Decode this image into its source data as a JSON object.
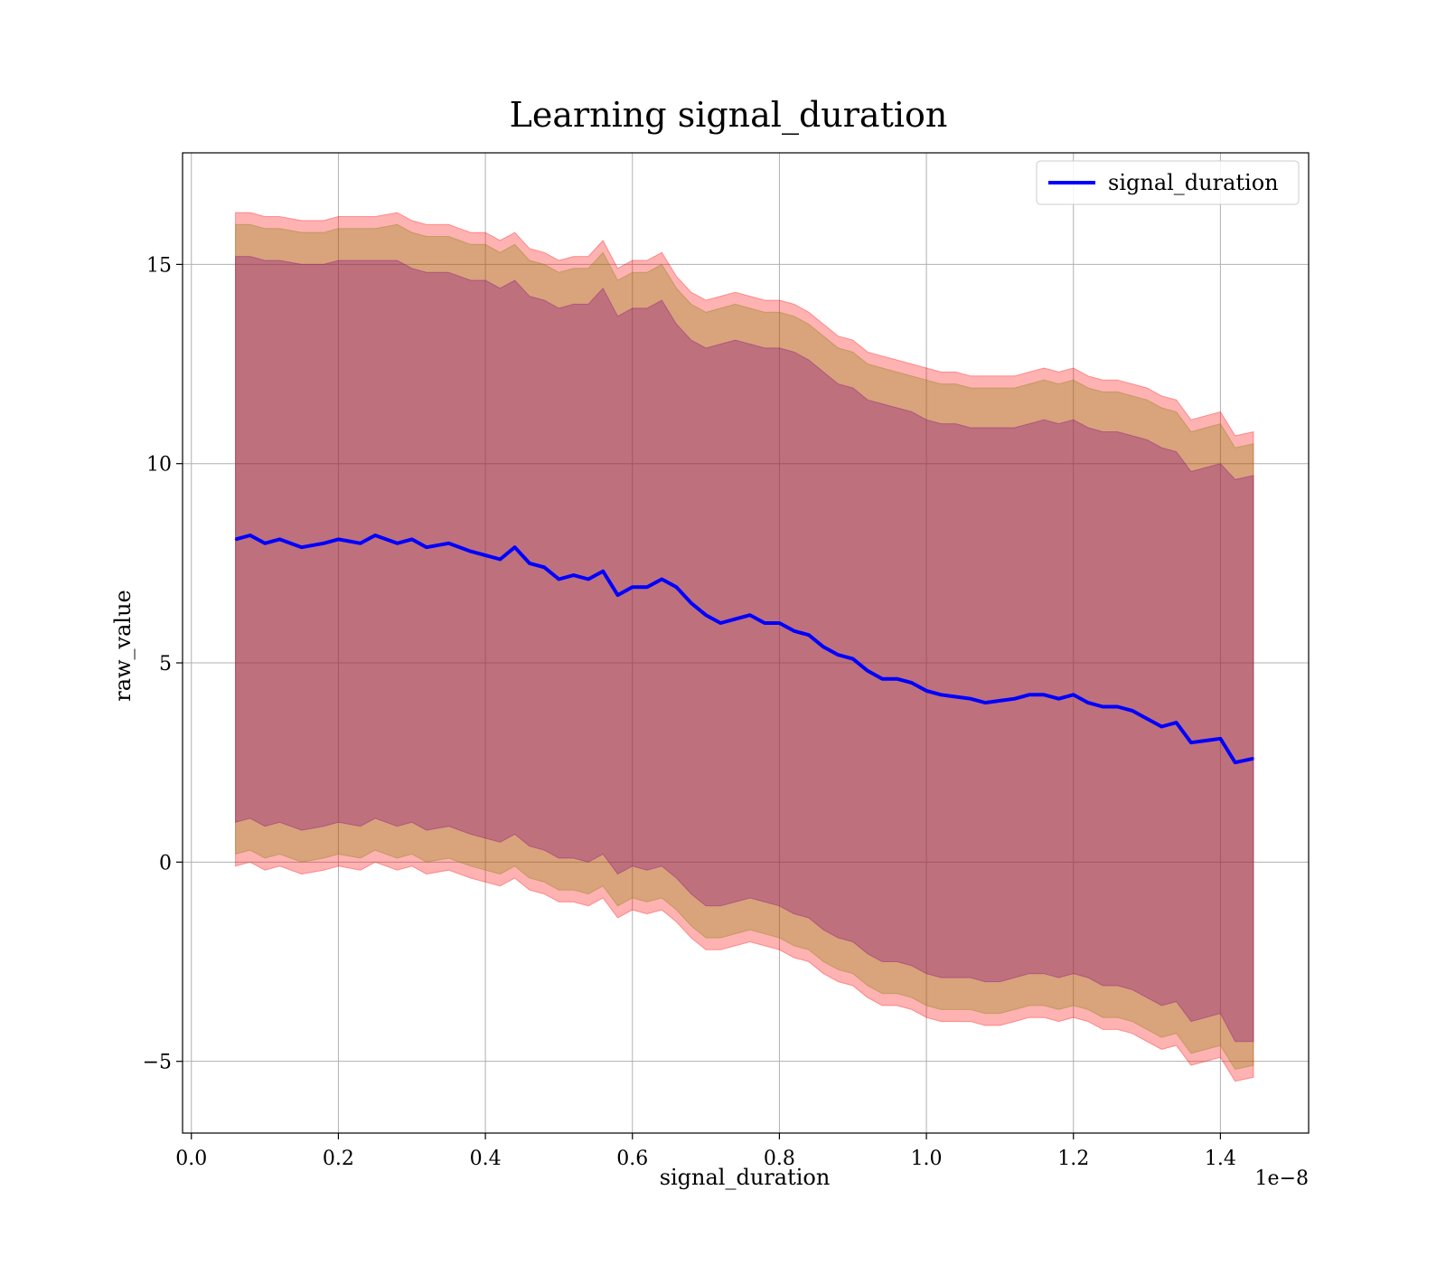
{
  "chart_data": {
    "type": "line",
    "title": "Learning signal_duration",
    "xlabel": "signal_duration",
    "ylabel": "raw_value",
    "x_offset_label": "1e−8",
    "xlim": [
      -0.012,
      1.52
    ],
    "ylim": [
      -6.8,
      17.8
    ],
    "x_ticks": [
      0.0,
      0.2,
      0.4,
      0.6,
      0.8,
      1.0,
      1.2,
      1.4
    ],
    "x_tick_labels": [
      "0.0",
      "0.2",
      "0.4",
      "0.6",
      "0.8",
      "1.0",
      "1.2",
      "1.4"
    ],
    "y_ticks": [
      -5,
      0,
      5,
      10,
      15
    ],
    "y_tick_labels": [
      "−5",
      "0",
      "5",
      "10",
      "15"
    ],
    "grid": true,
    "legend_position": "top-right",
    "series": [
      {
        "name": "signal_duration",
        "color": "#0000ff",
        "x": [
          0.06,
          0.08,
          0.1,
          0.12,
          0.15,
          0.18,
          0.2,
          0.23,
          0.25,
          0.28,
          0.3,
          0.32,
          0.35,
          0.38,
          0.4,
          0.42,
          0.44,
          0.46,
          0.48,
          0.5,
          0.52,
          0.54,
          0.56,
          0.58,
          0.6,
          0.62,
          0.64,
          0.66,
          0.68,
          0.7,
          0.72,
          0.74,
          0.76,
          0.78,
          0.8,
          0.82,
          0.84,
          0.86,
          0.88,
          0.9,
          0.92,
          0.94,
          0.96,
          0.98,
          1.0,
          1.02,
          1.04,
          1.06,
          1.08,
          1.1,
          1.12,
          1.14,
          1.16,
          1.18,
          1.2,
          1.22,
          1.24,
          1.26,
          1.28,
          1.3,
          1.32,
          1.34,
          1.36,
          1.38,
          1.4,
          1.42,
          1.445
        ],
        "values": [
          8.1,
          8.2,
          8.0,
          8.1,
          7.9,
          8.0,
          8.1,
          8.0,
          8.2,
          8.0,
          8.1,
          7.9,
          8.0,
          7.8,
          7.7,
          7.6,
          7.9,
          7.5,
          7.4,
          7.1,
          7.2,
          7.1,
          7.3,
          6.7,
          6.9,
          6.9,
          7.1,
          6.9,
          6.5,
          6.2,
          6.0,
          6.1,
          6.2,
          6.0,
          6.0,
          5.8,
          5.7,
          5.4,
          5.2,
          5.1,
          4.8,
          4.6,
          4.6,
          4.5,
          4.3,
          4.2,
          4.15,
          4.1,
          4.0,
          4.05,
          4.1,
          4.2,
          4.2,
          4.1,
          4.2,
          4.0,
          3.9,
          3.9,
          3.8,
          3.6,
          3.4,
          3.5,
          3.0,
          3.05,
          3.1,
          2.5,
          2.6
        ],
        "bands": [
          {
            "color": "#ff0000",
            "opacity": 0.3,
            "upper": [
              16.3,
              16.3,
              16.2,
              16.2,
              16.1,
              16.1,
              16.2,
              16.2,
              16.2,
              16.3,
              16.1,
              16.0,
              16.0,
              15.8,
              15.8,
              15.6,
              15.8,
              15.4,
              15.3,
              15.1,
              15.2,
              15.2,
              15.6,
              14.9,
              15.1,
              15.1,
              15.3,
              14.7,
              14.3,
              14.1,
              14.2,
              14.3,
              14.2,
              14.1,
              14.1,
              14.0,
              13.8,
              13.5,
              13.2,
              13.1,
              12.8,
              12.7,
              12.6,
              12.5,
              12.4,
              12.3,
              12.3,
              12.2,
              12.2,
              12.2,
              12.2,
              12.3,
              12.4,
              12.3,
              12.4,
              12.2,
              12.1,
              12.1,
              12.0,
              11.9,
              11.7,
              11.6,
              11.1,
              11.2,
              11.3,
              10.7,
              10.8
            ],
            "lower": [
              -0.1,
              0.0,
              -0.2,
              -0.1,
              -0.3,
              -0.2,
              -0.1,
              -0.2,
              0.0,
              -0.2,
              -0.1,
              -0.3,
              -0.2,
              -0.4,
              -0.5,
              -0.6,
              -0.4,
              -0.7,
              -0.8,
              -1.0,
              -1.0,
              -1.1,
              -0.9,
              -1.4,
              -1.2,
              -1.3,
              -1.2,
              -1.5,
              -1.9,
              -2.2,
              -2.2,
              -2.1,
              -2.0,
              -2.1,
              -2.2,
              -2.4,
              -2.5,
              -2.8,
              -3.0,
              -3.1,
              -3.4,
              -3.6,
              -3.6,
              -3.7,
              -3.9,
              -4.0,
              -4.0,
              -4.0,
              -4.1,
              -4.1,
              -4.0,
              -3.9,
              -3.9,
              -4.0,
              -3.9,
              -4.0,
              -4.2,
              -4.2,
              -4.3,
              -4.5,
              -4.7,
              -4.6,
              -5.1,
              -5.0,
              -4.9,
              -5.5,
              -5.4
            ]
          },
          {
            "color": "#808000",
            "opacity": 0.3,
            "upper": [
              16.0,
              16.0,
              15.9,
              15.9,
              15.8,
              15.8,
              15.9,
              15.9,
              15.9,
              16.0,
              15.8,
              15.7,
              15.7,
              15.5,
              15.5,
              15.3,
              15.5,
              15.1,
              15.0,
              14.8,
              14.9,
              14.9,
              15.3,
              14.6,
              14.8,
              14.8,
              15.0,
              14.4,
              14.0,
              13.8,
              13.9,
              14.0,
              13.9,
              13.8,
              13.8,
              13.7,
              13.5,
              13.2,
              12.9,
              12.8,
              12.5,
              12.4,
              12.3,
              12.2,
              12.1,
              12.0,
              12.0,
              11.9,
              11.9,
              11.9,
              11.9,
              12.0,
              12.1,
              12.0,
              12.1,
              11.9,
              11.8,
              11.8,
              11.7,
              11.6,
              11.4,
              11.3,
              10.8,
              10.9,
              11.0,
              10.4,
              10.5
            ],
            "lower": [
              0.2,
              0.3,
              0.1,
              0.2,
              0.0,
              0.1,
              0.2,
              0.1,
              0.3,
              0.1,
              0.2,
              0.0,
              0.1,
              -0.1,
              -0.2,
              -0.3,
              -0.1,
              -0.4,
              -0.5,
              -0.7,
              -0.7,
              -0.8,
              -0.6,
              -1.1,
              -0.9,
              -1.0,
              -0.9,
              -1.2,
              -1.6,
              -1.9,
              -1.9,
              -1.8,
              -1.7,
              -1.8,
              -1.9,
              -2.1,
              -2.2,
              -2.5,
              -2.7,
              -2.8,
              -3.1,
              -3.3,
              -3.3,
              -3.4,
              -3.6,
              -3.7,
              -3.7,
              -3.7,
              -3.8,
              -3.8,
              -3.7,
              -3.6,
              -3.6,
              -3.7,
              -3.6,
              -3.7,
              -3.9,
              -3.9,
              -4.0,
              -4.2,
              -4.4,
              -4.3,
              -4.8,
              -4.7,
              -4.6,
              -5.2,
              -5.1
            ]
          },
          {
            "color": "#800080",
            "opacity": 0.3,
            "upper": [
              15.2,
              15.2,
              15.1,
              15.1,
              15.0,
              15.0,
              15.1,
              15.1,
              15.1,
              15.1,
              14.9,
              14.8,
              14.8,
              14.6,
              14.6,
              14.4,
              14.6,
              14.2,
              14.1,
              13.9,
              14.0,
              14.0,
              14.4,
              13.7,
              13.9,
              13.9,
              14.1,
              13.5,
              13.1,
              12.9,
              13.0,
              13.1,
              13.0,
              12.9,
              12.9,
              12.8,
              12.6,
              12.3,
              12.0,
              11.9,
              11.6,
              11.5,
              11.4,
              11.3,
              11.1,
              11.0,
              11.0,
              10.9,
              10.9,
              10.9,
              10.9,
              11.0,
              11.1,
              11.0,
              11.1,
              10.9,
              10.8,
              10.8,
              10.7,
              10.6,
              10.4,
              10.3,
              9.8,
              9.9,
              10.0,
              9.6,
              9.7
            ],
            "lower": [
              1.0,
              1.1,
              0.9,
              1.0,
              0.8,
              0.9,
              1.0,
              0.9,
              1.1,
              0.9,
              1.0,
              0.8,
              0.9,
              0.7,
              0.6,
              0.5,
              0.7,
              0.4,
              0.3,
              0.1,
              0.1,
              0.0,
              0.2,
              -0.3,
              -0.1,
              -0.2,
              -0.1,
              -0.4,
              -0.8,
              -1.1,
              -1.1,
              -1.0,
              -0.9,
              -1.0,
              -1.1,
              -1.3,
              -1.4,
              -1.7,
              -1.9,
              -2.0,
              -2.3,
              -2.5,
              -2.5,
              -2.6,
              -2.8,
              -2.9,
              -2.9,
              -2.9,
              -3.0,
              -3.0,
              -2.9,
              -2.8,
              -2.8,
              -2.9,
              -2.8,
              -2.9,
              -3.1,
              -3.1,
              -3.2,
              -3.4,
              -3.6,
              -3.5,
              -4.0,
              -3.9,
              -3.8,
              -4.5,
              -4.5
            ]
          }
        ]
      }
    ]
  }
}
